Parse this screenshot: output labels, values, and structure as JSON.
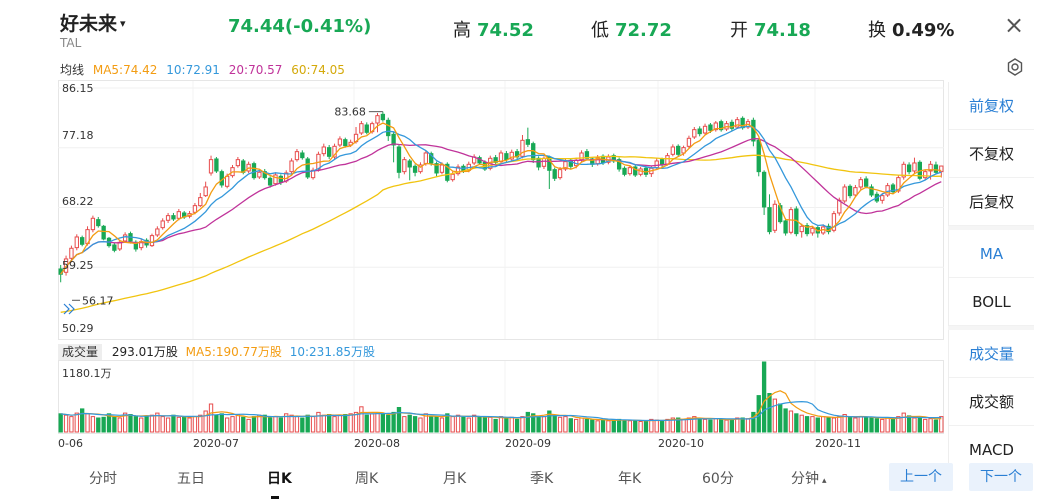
{
  "header": {
    "name": "好未来",
    "name_caret": "▾",
    "code": "TAL",
    "price_change": "74.44(-0.41%)",
    "high_label": "高",
    "high_value": "74.52",
    "low_label": "低",
    "low_value": "72.72",
    "open_label": "开",
    "open_value": "74.18",
    "turnover_label": "换",
    "turnover_value": "0.49%",
    "close_glyph": "×"
  },
  "ma_legend": {
    "label": "均线",
    "ma5": "MA5:74.42",
    "ma10": "10:72.91",
    "ma20": "20:70.57",
    "ma60": "60:74.05"
  },
  "y_axis": [
    "86.15",
    "77.18",
    "68.22",
    "59.25",
    "50.29"
  ],
  "annotations": {
    "max": "83.68",
    "min": "56.17"
  },
  "volume_legend": {
    "tag": "成交量",
    "volume": "293.01万股",
    "ma5": "MA5:190.77万股",
    "ma10": "10:231.85万股",
    "max_label": "1180.1万"
  },
  "x_axis": [
    "0-06",
    "2020-07",
    "2020-08",
    "2020-09",
    "2020-10",
    "2020-11"
  ],
  "side_panel": {
    "adjust": [
      "前复权",
      "不复权",
      "后复权"
    ],
    "indicators": [
      "MA",
      "BOLL"
    ],
    "sub": [
      "成交量",
      "成交额",
      "MACD"
    ]
  },
  "tabs": [
    "分时",
    "五日",
    "日K",
    "周K",
    "月K",
    "季K",
    "年K",
    "60分",
    "分钟"
  ],
  "tab_minute_caret": "▴",
  "nav": {
    "prev": "上一个",
    "next": "下一个"
  },
  "colors": {
    "up": "#e74c4c",
    "down": "#18a855",
    "ma5": "#f39c12",
    "ma10": "#3498db",
    "ma20": "#c0339a",
    "ma60": "#f1c40f",
    "accent": "#2a7fd4"
  },
  "chart_data": {
    "type": "candlestick",
    "ylim": [
      50.29,
      86.15
    ],
    "x_ticks": [
      "0-06",
      "2020-07",
      "2020-08",
      "2020-09",
      "2020-10",
      "2020-11"
    ],
    "candles": [
      [
        59.0,
        58.2,
        59.6,
        57.0
      ],
      [
        58.5,
        60.5,
        61.0,
        58.0
      ],
      [
        60.6,
        62.1,
        62.5,
        60.0
      ],
      [
        62.2,
        63.8,
        64.2,
        61.8
      ],
      [
        63.7,
        62.7,
        64.0,
        62.4
      ],
      [
        62.8,
        64.9,
        65.4,
        62.5
      ],
      [
        64.9,
        66.6,
        67.0,
        64.5
      ],
      [
        66.4,
        65.5,
        66.8,
        65.2
      ],
      [
        65.4,
        63.5,
        65.6,
        63.3
      ],
      [
        63.6,
        62.5,
        63.8,
        62.2
      ],
      [
        62.6,
        61.8,
        62.9,
        61.5
      ],
      [
        62.0,
        63.0,
        63.4,
        61.7
      ],
      [
        63.2,
        64.1,
        64.5,
        62.9
      ],
      [
        64.3,
        63.2,
        64.6,
        62.8
      ],
      [
        63.0,
        62.0,
        63.3,
        61.6
      ],
      [
        62.2,
        63.1,
        63.5,
        61.8
      ],
      [
        63.3,
        62.6,
        63.6,
        62.2
      ],
      [
        62.5,
        64.0,
        64.3,
        62.3
      ],
      [
        64.1,
        65.0,
        65.4,
        63.8
      ],
      [
        65.2,
        66.2,
        66.6,
        64.9
      ],
      [
        66.3,
        67.0,
        67.4,
        65.9
      ],
      [
        67.0,
        66.5,
        67.4,
        66.2
      ],
      [
        66.6,
        67.6,
        68.0,
        66.3
      ],
      [
        67.4,
        66.8,
        67.7,
        66.5
      ],
      [
        66.9,
        67.3,
        67.7,
        66.6
      ],
      [
        67.5,
        68.5,
        68.9,
        67.2
      ],
      [
        68.5,
        69.7,
        70.4,
        68.3
      ],
      [
        70.0,
        71.3,
        72.1,
        69.8
      ],
      [
        73.4,
        75.4,
        76.0,
        73.0
      ],
      [
        75.5,
        73.7,
        75.8,
        73.4
      ],
      [
        73.6,
        71.6,
        73.9,
        71.2
      ],
      [
        71.4,
        72.9,
        73.3,
        71.1
      ],
      [
        73.0,
        74.2,
        74.6,
        72.7
      ],
      [
        74.5,
        75.4,
        75.8,
        74.2
      ],
      [
        75.2,
        73.5,
        75.5,
        73.2
      ],
      [
        73.7,
        74.7,
        75.1,
        73.4
      ],
      [
        74.8,
        72.7,
        75.1,
        72.4
      ],
      [
        72.8,
        73.5,
        73.9,
        72.5
      ],
      [
        73.6,
        72.7,
        74.0,
        72.4
      ],
      [
        72.6,
        71.6,
        72.9,
        71.2
      ],
      [
        71.8,
        73.1,
        73.5,
        71.5
      ],
      [
        72.9,
        72.0,
        73.2,
        71.6
      ],
      [
        72.2,
        73.4,
        73.8,
        71.9
      ],
      [
        73.6,
        75.2,
        75.6,
        73.3
      ],
      [
        75.4,
        76.6,
        77.0,
        75.1
      ],
      [
        76.4,
        75.7,
        76.8,
        75.4
      ],
      [
        75.5,
        72.8,
        75.8,
        72.5
      ],
      [
        72.7,
        73.8,
        74.2,
        72.4
      ],
      [
        74.0,
        76.2,
        76.6,
        73.6
      ],
      [
        76.3,
        77.3,
        77.8,
        75.9
      ],
      [
        77.2,
        75.9,
        77.6,
        75.5
      ],
      [
        75.8,
        77.4,
        77.8,
        75.5
      ],
      [
        77.6,
        78.5,
        78.9,
        77.3
      ],
      [
        78.4,
        77.5,
        78.7,
        77.2
      ],
      [
        77.6,
        78.0,
        78.4,
        77.3
      ],
      [
        78.1,
        79.2,
        80.3,
        77.8
      ],
      [
        79.4,
        80.8,
        81.2,
        79.1
      ],
      [
        80.6,
        79.5,
        81.0,
        79.2
      ],
      [
        79.6,
        80.8,
        81.1,
        79.3
      ],
      [
        80.9,
        82.0,
        82.4,
        79.5
      ],
      [
        82.2,
        81.4,
        82.6,
        81.1
      ],
      [
        81.3,
        79.0,
        81.7,
        78.2
      ],
      [
        79.2,
        77.6,
        79.5,
        75.0
      ],
      [
        77.3,
        73.5,
        77.6,
        72.6
      ],
      [
        73.6,
        75.4,
        75.8,
        73.2
      ],
      [
        75.2,
        74.3,
        75.5,
        72.3
      ],
      [
        74.4,
        73.5,
        74.7,
        72.9
      ],
      [
        73.6,
        74.6,
        75.0,
        73.3
      ],
      [
        74.8,
        76.4,
        76.8,
        74.5
      ],
      [
        76.3,
        74.9,
        76.6,
        74.5
      ],
      [
        74.8,
        73.4,
        75.1,
        72.9
      ],
      [
        73.5,
        74.6,
        75.0,
        73.2
      ],
      [
        74.7,
        72.3,
        75.0,
        72.0
      ],
      [
        72.4,
        73.2,
        73.6,
        72.1
      ],
      [
        73.3,
        74.3,
        74.7,
        73.0
      ],
      [
        74.4,
        73.7,
        74.7,
        73.4
      ],
      [
        73.8,
        74.7,
        75.1,
        73.5
      ],
      [
        74.9,
        75.8,
        76.2,
        74.6
      ],
      [
        75.7,
        74.9,
        76.0,
        74.6
      ],
      [
        75.0,
        74.0,
        75.3,
        73.7
      ],
      [
        74.1,
        75.6,
        76.0,
        73.8
      ],
      [
        75.7,
        75.0,
        76.1,
        74.7
      ],
      [
        75.1,
        76.4,
        76.8,
        74.8
      ],
      [
        76.3,
        75.4,
        76.7,
        75.1
      ],
      [
        75.5,
        76.5,
        76.9,
        75.2
      ],
      [
        76.6,
        75.8,
        77.0,
        75.5
      ],
      [
        75.9,
        78.3,
        79.1,
        75.6
      ],
      [
        78.4,
        77.7,
        80.2,
        77.3
      ],
      [
        77.8,
        75.4,
        78.1,
        74.9
      ],
      [
        75.6,
        74.3,
        75.9,
        73.8
      ],
      [
        74.4,
        75.6,
        75.9,
        74.0
      ],
      [
        75.8,
        73.8,
        76.0,
        71.0
      ],
      [
        73.9,
        72.6,
        74.2,
        72.2
      ],
      [
        72.7,
        73.9,
        74.3,
        72.4
      ],
      [
        74.0,
        75.1,
        75.5,
        73.7
      ],
      [
        75.3,
        74.4,
        75.6,
        74.0
      ],
      [
        74.5,
        75.3,
        75.7,
        74.1
      ],
      [
        75.4,
        76.4,
        76.8,
        75.1
      ],
      [
        76.6,
        75.6,
        77.0,
        75.3
      ],
      [
        75.5,
        74.7,
        75.8,
        74.3
      ],
      [
        74.8,
        75.7,
        76.1,
        74.5
      ],
      [
        75.9,
        74.9,
        76.2,
        74.6
      ],
      [
        75.0,
        75.8,
        76.2,
        74.7
      ],
      [
        76.0,
        75.2,
        76.3,
        74.9
      ],
      [
        75.4,
        74.0,
        75.7,
        73.6
      ],
      [
        74.1,
        73.2,
        74.4,
        72.9
      ],
      [
        73.3,
        74.2,
        74.6,
        73.0
      ],
      [
        74.3,
        73.1,
        74.6,
        72.8
      ],
      [
        73.2,
        74.0,
        74.3,
        72.9
      ],
      [
        74.1,
        73.2,
        74.4,
        72.8
      ],
      [
        73.3,
        74.1,
        74.4,
        72.8
      ],
      [
        74.2,
        75.2,
        75.6,
        73.9
      ],
      [
        75.4,
        74.6,
        75.7,
        74.3
      ],
      [
        74.7,
        76.0,
        76.4,
        74.5
      ],
      [
        76.2,
        77.3,
        77.7,
        75.9
      ],
      [
        77.4,
        76.2,
        77.7,
        75.8
      ],
      [
        76.4,
        77.2,
        77.5,
        76.0
      ],
      [
        77.4,
        78.6,
        79.0,
        77.1
      ],
      [
        78.8,
        79.9,
        80.3,
        78.5
      ],
      [
        80.0,
        79.3,
        80.4,
        78.9
      ],
      [
        79.4,
        80.4,
        80.8,
        79.1
      ],
      [
        80.6,
        79.8,
        80.9,
        79.4
      ],
      [
        79.9,
        80.9,
        81.2,
        79.6
      ],
      [
        81.1,
        79.9,
        81.4,
        79.6
      ],
      [
        80.0,
        80.8,
        81.2,
        79.7
      ],
      [
        81.0,
        80.1,
        81.4,
        79.7
      ],
      [
        80.3,
        81.4,
        81.8,
        80.0
      ],
      [
        81.6,
        80.2,
        81.9,
        79.9
      ],
      [
        80.3,
        81.1,
        81.5,
        80.0
      ],
      [
        81.3,
        78.2,
        81.7,
        77.4
      ],
      [
        78.3,
        73.6,
        78.6,
        72.9
      ],
      [
        73.5,
        68.3,
        73.8,
        67.1
      ],
      [
        68.2,
        64.6,
        70.2,
        64.2
      ],
      [
        64.8,
        68.7,
        69.3,
        64.4
      ],
      [
        68.5,
        66.1,
        68.9,
        65.8
      ],
      [
        66.2,
        64.4,
        66.6,
        64.0
      ],
      [
        64.5,
        67.9,
        68.3,
        64.2
      ],
      [
        68.0,
        64.3,
        68.4,
        63.9
      ],
      [
        64.6,
        65.4,
        65.8,
        63.7
      ],
      [
        65.5,
        64.3,
        65.9,
        63.9
      ],
      [
        64.4,
        65.1,
        65.4,
        64.0
      ],
      [
        65.2,
        64.4,
        65.6,
        63.7
      ],
      [
        64.4,
        65.3,
        65.7,
        64.1
      ],
      [
        65.4,
        64.6,
        65.8,
        64.2
      ],
      [
        64.8,
        67.3,
        67.7,
        64.5
      ],
      [
        67.4,
        69.3,
        69.7,
        67.0
      ],
      [
        69.2,
        71.3,
        71.7,
        68.9
      ],
      [
        71.4,
        70.0,
        71.7,
        69.6
      ],
      [
        70.1,
        71.2,
        71.6,
        69.8
      ],
      [
        71.3,
        72.4,
        72.8,
        70.9
      ],
      [
        72.5,
        71.4,
        72.9,
        71.1
      ],
      [
        71.3,
        70.1,
        71.7,
        69.8
      ],
      [
        70.2,
        69.2,
        70.6,
        68.9
      ],
      [
        69.3,
        70.0,
        70.4,
        68.8
      ],
      [
        70.1,
        71.5,
        71.9,
        69.8
      ],
      [
        71.6,
        70.6,
        71.9,
        70.2
      ],
      [
        70.7,
        72.7,
        73.1,
        70.4
      ],
      [
        72.8,
        74.7,
        75.1,
        72.4
      ],
      [
        74.6,
        73.6,
        75.0,
        73.2
      ],
      [
        73.7,
        74.9,
        75.7,
        73.3
      ],
      [
        75.0,
        72.6,
        75.3,
        72.3
      ],
      [
        72.7,
        73.6,
        73.9,
        72.3
      ],
      [
        73.7,
        74.7,
        75.2,
        72.4
      ],
      [
        74.6,
        73.5,
        75.1,
        73.2
      ],
      [
        73.6,
        74.44,
        74.52,
        72.72
      ]
    ],
    "volumes": [
      0.26,
      0.24,
      0.22,
      0.27,
      0.33,
      0.26,
      0.22,
      0.2,
      0.21,
      0.26,
      0.22,
      0.2,
      0.27,
      0.25,
      0.22,
      0.2,
      0.23,
      0.24,
      0.27,
      0.22,
      0.2,
      0.24,
      0.21,
      0.22,
      0.2,
      0.22,
      0.24,
      0.3,
      0.4,
      0.24,
      0.26,
      0.2,
      0.22,
      0.25,
      0.21,
      0.18,
      0.22,
      0.24,
      0.24,
      0.2,
      0.22,
      0.2,
      0.26,
      0.24,
      0.22,
      0.2,
      0.24,
      0.22,
      0.28,
      0.24,
      0.25,
      0.22,
      0.24,
      0.25,
      0.26,
      0.28,
      0.36,
      0.24,
      0.26,
      0.27,
      0.25,
      0.24,
      0.28,
      0.35,
      0.22,
      0.24,
      0.22,
      0.2,
      0.26,
      0.22,
      0.22,
      0.2,
      0.26,
      0.22,
      0.24,
      0.21,
      0.2,
      0.24,
      0.22,
      0.2,
      0.21,
      0.18,
      0.22,
      0.2,
      0.21,
      0.18,
      0.22,
      0.28,
      0.26,
      0.22,
      0.22,
      0.3,
      0.24,
      0.21,
      0.22,
      0.19,
      0.18,
      0.2,
      0.18,
      0.17,
      0.16,
      0.17,
      0.16,
      0.17,
      0.18,
      0.17,
      0.16,
      0.16,
      0.15,
      0.16,
      0.18,
      0.17,
      0.16,
      0.18,
      0.2,
      0.2,
      0.18,
      0.2,
      0.22,
      0.2,
      0.18,
      0.17,
      0.19,
      0.18,
      0.17,
      0.18,
      0.2,
      0.2,
      0.19,
      0.28,
      0.52,
      1.0,
      0.55,
      0.47,
      0.4,
      0.33,
      0.3,
      0.26,
      0.24,
      0.22,
      0.22,
      0.2,
      0.22,
      0.21,
      0.2,
      0.22,
      0.25,
      0.22,
      0.2,
      0.22,
      0.21,
      0.2,
      0.19,
      0.18,
      0.2,
      0.19,
      0.22,
      0.27,
      0.23,
      0.2,
      0.2,
      0.18,
      0.19,
      0.17,
      0.22
    ]
  }
}
